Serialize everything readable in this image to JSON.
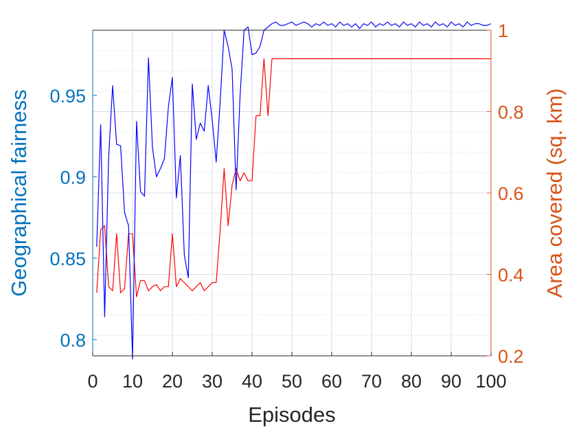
{
  "chart_data": {
    "type": "line",
    "title": "",
    "xlabel": "Episodes",
    "ylabel_left": "Geographical fairness",
    "ylabel_right": "Area covered (sq. km)",
    "xlim": [
      0,
      100
    ],
    "ylim_left": [
      0.79,
      0.99
    ],
    "ylim_right": [
      0.2,
      1.0
    ],
    "x_ticks": [
      "0",
      "10",
      "20",
      "30",
      "40",
      "50",
      "60",
      "70",
      "80",
      "90",
      "100"
    ],
    "y_left_ticks": [
      "0.8",
      "0.85",
      "0.9",
      "0.95"
    ],
    "y_right_ticks": [
      "0.2",
      "0.4",
      "0.6",
      "0.8",
      "1"
    ],
    "grid": true,
    "colors": {
      "left_axis": "#0072BD",
      "right_axis": "#D95319",
      "fairness_line": "#0000FF",
      "area_line": "#FF0000",
      "grid": "#d4dde4"
    },
    "series": [
      {
        "axis": "left",
        "x": [
          1,
          2,
          3,
          4,
          5,
          6,
          7,
          8,
          9,
          10,
          11,
          12,
          13,
          14,
          15,
          16,
          17,
          18,
          19,
          20,
          21,
          22,
          23,
          24,
          25,
          26,
          27,
          28,
          29,
          30,
          31,
          32,
          33,
          34,
          35,
          36,
          37,
          38,
          39,
          40,
          41,
          42,
          43,
          44,
          45,
          46,
          47,
          48,
          49,
          50,
          51,
          52,
          53,
          54,
          55,
          56,
          57,
          58,
          59,
          60,
          61,
          62,
          63,
          64,
          65,
          66,
          67,
          68,
          69,
          70,
          71,
          72,
          73,
          74,
          75,
          76,
          77,
          78,
          79,
          80,
          81,
          82,
          83,
          84,
          85,
          86,
          87,
          88,
          89,
          90,
          91,
          92,
          93,
          94,
          95,
          96,
          97,
          98,
          99,
          100
        ],
        "values": [
          0.857,
          0.932,
          0.814,
          0.912,
          0.956,
          0.92,
          0.919,
          0.878,
          0.87,
          0.788,
          0.934,
          0.891,
          0.888,
          0.973,
          0.918,
          0.9,
          0.905,
          0.911,
          0.943,
          0.961,
          0.887,
          0.913,
          0.852,
          0.838,
          0.957,
          0.923,
          0.933,
          0.928,
          0.956,
          0.935,
          0.909,
          0.946,
          0.99,
          0.98,
          0.966,
          0.892,
          0.95,
          0.99,
          0.992,
          0.975,
          0.976,
          0.98,
          0.99,
          0.992,
          0.994,
          0.995,
          0.993,
          0.993,
          0.994,
          0.995,
          0.993,
          0.994,
          0.995,
          0.994,
          0.992,
          0.994,
          0.993,
          0.995,
          0.993,
          0.994,
          0.992,
          0.995,
          0.993,
          0.994,
          0.992,
          0.994,
          0.991,
          0.994,
          0.993,
          0.995,
          0.992,
          0.994,
          0.993,
          0.995,
          0.993,
          0.994,
          0.992,
          0.995,
          0.993,
          0.994,
          0.992,
          0.995,
          0.993,
          0.994,
          0.992,
          0.995,
          0.993,
          0.994,
          0.992,
          0.995,
          0.993,
          0.994,
          0.992,
          0.995,
          0.993,
          0.994,
          0.994,
          0.993,
          0.993,
          0.994
        ]
      },
      {
        "axis": "right",
        "x": [
          1,
          2,
          3,
          4,
          5,
          6,
          7,
          8,
          9,
          10,
          11,
          12,
          13,
          14,
          15,
          16,
          17,
          18,
          19,
          20,
          21,
          22,
          23,
          24,
          25,
          26,
          27,
          28,
          29,
          30,
          31,
          32,
          33,
          34,
          35,
          36,
          37,
          38,
          39,
          40,
          41,
          42,
          43,
          44,
          45,
          46,
          47,
          48,
          49,
          50,
          51,
          52,
          53,
          54,
          55,
          56,
          57,
          58,
          59,
          60,
          61,
          62,
          63,
          64,
          65,
          66,
          67,
          68,
          69,
          70,
          71,
          72,
          73,
          74,
          75,
          76,
          77,
          78,
          79,
          80,
          81,
          82,
          83,
          84,
          85,
          86,
          87,
          88,
          89,
          90,
          91,
          92,
          93,
          94,
          95,
          96,
          97,
          98,
          99,
          100
        ],
        "values": [
          0.355,
          0.51,
          0.52,
          0.37,
          0.36,
          0.5,
          0.355,
          0.365,
          0.5,
          0.5,
          0.345,
          0.385,
          0.385,
          0.36,
          0.37,
          0.375,
          0.36,
          0.37,
          0.37,
          0.5,
          0.37,
          0.39,
          0.38,
          0.37,
          0.36,
          0.37,
          0.38,
          0.36,
          0.37,
          0.38,
          0.38,
          0.51,
          0.66,
          0.52,
          0.62,
          0.66,
          0.63,
          0.65,
          0.63,
          0.63,
          0.79,
          0.79,
          0.93,
          0.79,
          0.93,
          0.93,
          0.93,
          0.93,
          0.93,
          0.93,
          0.93,
          0.93,
          0.93,
          0.93,
          0.93,
          0.93,
          0.93,
          0.93,
          0.93,
          0.93,
          0.93,
          0.93,
          0.93,
          0.93,
          0.93,
          0.93,
          0.93,
          0.93,
          0.93,
          0.93,
          0.93,
          0.93,
          0.93,
          0.93,
          0.93,
          0.93,
          0.93,
          0.93,
          0.93,
          0.93,
          0.93,
          0.93,
          0.93,
          0.93,
          0.93,
          0.93,
          0.93,
          0.93,
          0.93,
          0.93,
          0.93,
          0.93,
          0.93,
          0.93,
          0.93,
          0.93,
          0.93,
          0.93,
          0.93,
          0.93
        ]
      }
    ]
  }
}
